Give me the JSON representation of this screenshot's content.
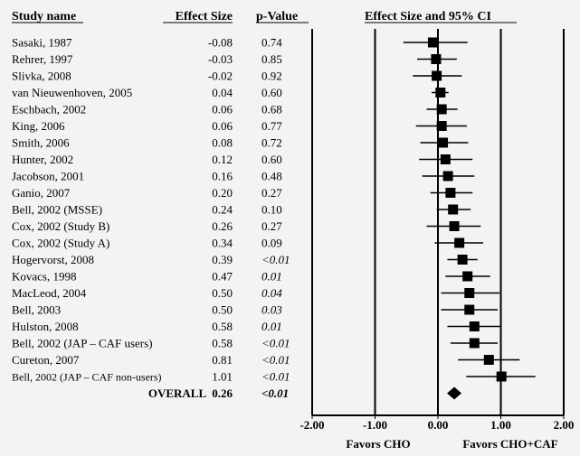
{
  "chart_data": {
    "type": "forest",
    "headers": {
      "study": "Study name",
      "effect": "Effect Size",
      "pvalue": "p-Value",
      "ci": "Effect Size and 95% CI"
    },
    "studies": [
      {
        "name": "Sasaki, 1987",
        "effect": "-0.08",
        "p": "0.74",
        "p_italic": false,
        "es": -0.08,
        "lo": -0.55,
        "hi": 0.47
      },
      {
        "name": "Rehrer, 1997",
        "effect": "-0.03",
        "p": "0.85",
        "p_italic": false,
        "es": -0.03,
        "lo": -0.33,
        "hi": 0.3
      },
      {
        "name": "Slivka, 2008",
        "effect": "-0.02",
        "p": "0.92",
        "p_italic": false,
        "es": -0.02,
        "lo": -0.4,
        "hi": 0.38
      },
      {
        "name": "van Nieuwenhoven, 2005",
        "effect": "0.04",
        "p": "0.60",
        "p_italic": false,
        "es": 0.04,
        "lo": -0.1,
        "hi": 0.17
      },
      {
        "name": "Eschbach, 2002",
        "effect": "0.06",
        "p": "0.68",
        "p_italic": false,
        "es": 0.06,
        "lo": -0.18,
        "hi": 0.31
      },
      {
        "name": "King, 2006",
        "effect": "0.06",
        "p": "0.77",
        "p_italic": false,
        "es": 0.06,
        "lo": -0.35,
        "hi": 0.46
      },
      {
        "name": "Smith, 2006",
        "effect": "0.08",
        "p": "0.72",
        "p_italic": false,
        "es": 0.08,
        "lo": -0.28,
        "hi": 0.48
      },
      {
        "name": "Hunter, 2002",
        "effect": "0.12",
        "p": "0.60",
        "p_italic": false,
        "es": 0.12,
        "lo": -0.3,
        "hi": 0.55
      },
      {
        "name": "Jacobson, 2001",
        "effect": "0.16",
        "p": "0.48",
        "p_italic": false,
        "es": 0.16,
        "lo": -0.25,
        "hi": 0.58
      },
      {
        "name": "Ganio, 2007",
        "effect": "0.20",
        "p": "0.27",
        "p_italic": false,
        "es": 0.2,
        "lo": -0.12,
        "hi": 0.55
      },
      {
        "name": "Bell, 2002 (MSSE)",
        "effect": "0.24",
        "p": "0.10",
        "p_italic": false,
        "es": 0.24,
        "lo": -0.02,
        "hi": 0.52
      },
      {
        "name": "Cox, 2002 (Study B)",
        "effect": "0.26",
        "p": "0.27",
        "p_italic": false,
        "es": 0.26,
        "lo": -0.18,
        "hi": 0.68
      },
      {
        "name": "Cox, 2002 (Study A)",
        "effect": "0.34",
        "p": "0.09",
        "p_italic": false,
        "es": 0.34,
        "lo": -0.05,
        "hi": 0.72
      },
      {
        "name": "Hogervorst, 2008",
        "effect": "0.39",
        "p": "<0.01",
        "p_italic": true,
        "es": 0.39,
        "lo": 0.15,
        "hi": 0.63
      },
      {
        "name": "Kovacs, 1998",
        "effect": "0.47",
        "p": "0.01",
        "p_italic": true,
        "es": 0.47,
        "lo": 0.12,
        "hi": 0.83
      },
      {
        "name": "MacLeod, 2004",
        "effect": "0.50",
        "p": "0.04",
        "p_italic": true,
        "es": 0.5,
        "lo": 0.05,
        "hi": 0.98
      },
      {
        "name": "Bell, 2003",
        "effect": "0.50",
        "p": "0.03",
        "p_italic": true,
        "es": 0.5,
        "lo": 0.05,
        "hi": 0.95
      },
      {
        "name": "Hulston, 2008",
        "effect": "0.58",
        "p": "0.01",
        "p_italic": true,
        "es": 0.58,
        "lo": 0.15,
        "hi": 1.0
      },
      {
        "name": "Bell, 2002 (JAP – CAF users)",
        "effect": "0.58",
        "p": "<0.01",
        "p_italic": true,
        "es": 0.58,
        "lo": 0.2,
        "hi": 0.95
      },
      {
        "name": "Cureton, 2007",
        "effect": "0.81",
        "p": "<0.01",
        "p_italic": true,
        "es": 0.81,
        "lo": 0.32,
        "hi": 1.3
      },
      {
        "name": "Bell, 2002 (JAP – CAF non-users)",
        "effect": "1.01",
        "p": "<0.01",
        "p_italic": true,
        "es": 1.01,
        "lo": 0.45,
        "hi": 1.55
      }
    ],
    "overall": {
      "name": "OVERALL",
      "effect": "0.26",
      "p": "<0.01",
      "p_italic": true,
      "es": 0.26,
      "lo": 0.16,
      "hi": 0.36
    },
    "x_ticks": [
      "-2.00",
      "-1.00",
      "0.00",
      "1.00",
      "2.00"
    ],
    "x_tick_values": [
      -2,
      -1,
      0,
      1,
      2
    ],
    "xlim": [
      -2,
      2
    ],
    "favors_left": "Favors CHO",
    "favors_right": "Favors CHO+CAF",
    "grid": false,
    "legend": "none"
  }
}
